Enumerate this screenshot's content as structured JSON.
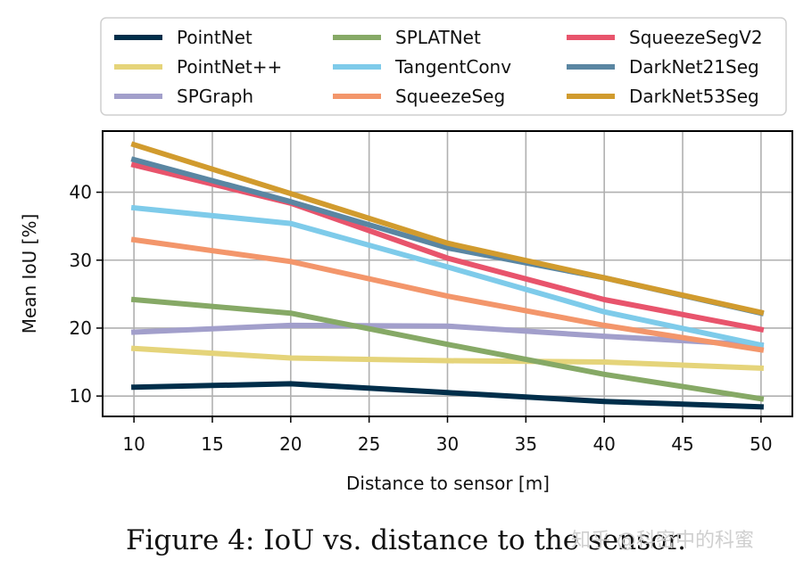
{
  "chart_data": {
    "type": "line",
    "title": "",
    "xlabel": "Distance to sensor [m]",
    "ylabel": "Mean IoU [%]",
    "xlim": [
      8,
      52
    ],
    "ylim": [
      7,
      49
    ],
    "x_ticks": [
      10,
      15,
      20,
      25,
      30,
      35,
      40,
      45,
      50
    ],
    "y_ticks": [
      10,
      20,
      30,
      40
    ],
    "grid": true,
    "legend_position": "top",
    "series": [
      {
        "name": "PointNet",
        "color": "#002e4a",
        "x": [
          10,
          20,
          30,
          40,
          50
        ],
        "values": [
          11.3,
          11.8,
          10.5,
          9.2,
          8.4
        ]
      },
      {
        "name": "PointNet++",
        "color": "#e5d47a",
        "x": [
          10,
          20,
          30,
          40,
          50
        ],
        "values": [
          17.0,
          15.6,
          15.2,
          15.0,
          14.1
        ]
      },
      {
        "name": "SPGraph",
        "color": "#a29fcb",
        "x": [
          10,
          20,
          30,
          40,
          50
        ],
        "values": [
          19.4,
          20.4,
          20.3,
          18.8,
          17.5
        ]
      },
      {
        "name": "SPLATNet",
        "color": "#86a966",
        "x": [
          10,
          20,
          30,
          40,
          50
        ],
        "values": [
          24.2,
          22.2,
          17.6,
          13.2,
          9.6
        ]
      },
      {
        "name": "TangentConv",
        "color": "#7ecbea",
        "x": [
          10,
          20,
          30,
          40,
          50
        ],
        "values": [
          37.7,
          35.4,
          29.0,
          22.4,
          17.5
        ]
      },
      {
        "name": "SqueezeSeg",
        "color": "#f3966b",
        "x": [
          10,
          20,
          30,
          40,
          50
        ],
        "values": [
          33.0,
          29.8,
          24.7,
          20.4,
          16.8
        ]
      },
      {
        "name": "SqueezeSegV2",
        "color": "#e8546c",
        "x": [
          10,
          20,
          30,
          40,
          50
        ],
        "values": [
          44.0,
          38.4,
          30.3,
          24.2,
          19.8
        ]
      },
      {
        "name": "DarkNet21Seg",
        "color": "#5a86a2",
        "x": [
          10,
          20,
          30,
          40,
          50
        ],
        "values": [
          44.8,
          38.6,
          31.8,
          27.4,
          22.2
        ]
      },
      {
        "name": "DarkNet53Seg",
        "color": "#d19b2e",
        "x": [
          10,
          20,
          30,
          40,
          50
        ],
        "values": [
          47.0,
          39.8,
          32.5,
          27.4,
          22.3
        ]
      }
    ]
  },
  "caption": "Figure 4: IoU vs. distance to the sensor.",
  "watermark": "知乎 @科密中的科蜜"
}
